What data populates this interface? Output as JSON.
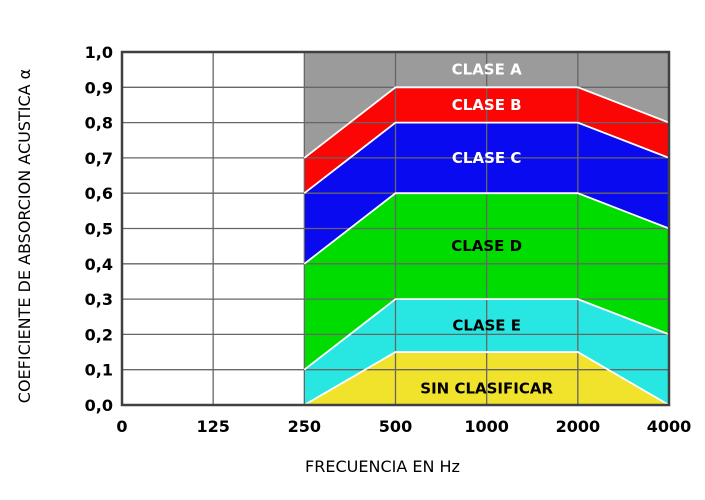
{
  "chart_data": {
    "type": "area",
    "title": "",
    "xlabel": "FRECUENCIA EN Hz",
    "ylabel": "COEFICIENTE DE ABSORCION ACUSTICA α",
    "x_ticks": [
      0,
      125,
      250,
      500,
      1000,
      2000,
      4000
    ],
    "x_tick_labels": [
      "0",
      "125",
      "250",
      "500",
      "1000",
      "2000",
      "4000"
    ],
    "y_tick_labels": [
      "1,0",
      "0,9",
      "0,8",
      "0,7",
      "0,6",
      "0,5",
      "0,4",
      "0,3",
      "0,2",
      "0,1",
      "0,0"
    ],
    "ylim": [
      0,
      1
    ],
    "y_grid_step": 0.1,
    "grid": true,
    "legend_position": "none",
    "band_x": [
      250,
      500,
      1000,
      2000,
      4000
    ],
    "bands": [
      {
        "label": "CLASE A",
        "color": "#9b9b9b",
        "text_color": "#ffffff",
        "upper": [
          1.0,
          1.0,
          1.0,
          1.0,
          1.0
        ],
        "lower": [
          0.7,
          0.9,
          0.9,
          0.9,
          0.8
        ]
      },
      {
        "label": "CLASE B",
        "color": "#fb0505",
        "text_color": "#ffffff",
        "lower": [
          0.6,
          0.8,
          0.8,
          0.8,
          0.7
        ]
      },
      {
        "label": "CLASE C",
        "color": "#0a0af0",
        "text_color": "#ffffff",
        "lower": [
          0.4,
          0.6,
          0.6,
          0.6,
          0.5
        ]
      },
      {
        "label": "CLASE D",
        "color": "#00dc00",
        "text_color": "#000000",
        "lower": [
          0.1,
          0.3,
          0.3,
          0.3,
          0.2
        ]
      },
      {
        "label": "CLASE E",
        "color": "#28e7e2",
        "text_color": "#000000",
        "lower": [
          0.0,
          0.15,
          0.15,
          0.15,
          0.0
        ]
      },
      {
        "label": "SIN CLASIFICAR",
        "color": "#f1e32b",
        "text_color": "#000000",
        "lower": [
          0.0,
          0.0,
          0.0,
          0.0,
          0.0
        ]
      }
    ]
  },
  "colors": {
    "background": "#ffffff",
    "gridline": "#666666",
    "plot_border": "#404040",
    "boundary_line": "#ffffff"
  }
}
